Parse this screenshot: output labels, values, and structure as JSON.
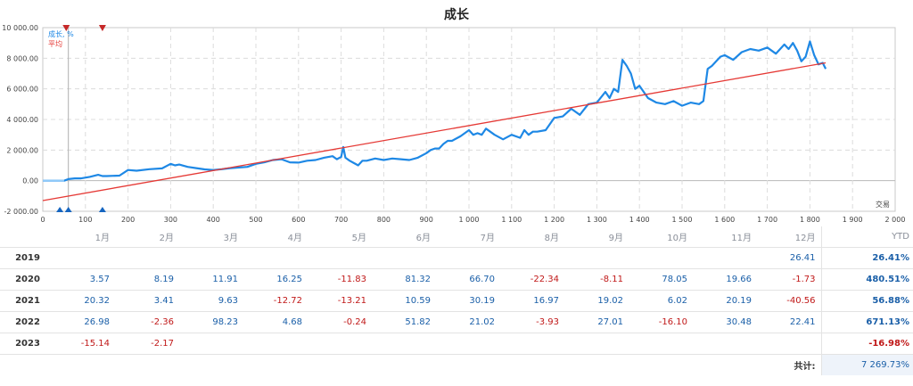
{
  "chart_data": {
    "type": "line",
    "title": "成长",
    "series": [
      {
        "name": "成长, %",
        "color": "#1e88e5",
        "x": [
          0,
          20,
          40,
          50,
          55,
          60,
          75,
          90,
          110,
          130,
          140,
          150,
          180,
          200,
          220,
          250,
          280,
          300,
          310,
          320,
          340,
          360,
          380,
          400,
          420,
          440,
          460,
          480,
          500,
          520,
          540,
          560,
          580,
          600,
          620,
          640,
          660,
          680,
          690,
          700,
          705,
          710,
          720,
          730,
          740,
          750,
          760,
          780,
          800,
          820,
          840,
          860,
          880,
          900,
          910,
          920,
          930,
          940,
          950,
          960,
          980,
          1000,
          1010,
          1020,
          1030,
          1040,
          1060,
          1080,
          1100,
          1120,
          1130,
          1140,
          1150,
          1160,
          1180,
          1200,
          1220,
          1240,
          1260,
          1280,
          1300,
          1320,
          1330,
          1340,
          1350,
          1360,
          1370,
          1380,
          1390,
          1400,
          1420,
          1440,
          1460,
          1480,
          1500,
          1520,
          1540,
          1550,
          1560,
          1570,
          1580,
          1590,
          1600,
          1620,
          1640,
          1660,
          1680,
          1700,
          1720,
          1740,
          1750,
          1760,
          1770,
          1780,
          1790,
          1800,
          1810,
          1820,
          1830,
          1837
        ],
        "y": [
          0,
          0,
          0,
          0,
          50,
          100,
          150,
          150,
          250,
          380,
          300,
          300,
          330,
          700,
          650,
          750,
          800,
          1100,
          1000,
          1050,
          900,
          820,
          740,
          700,
          750,
          820,
          860,
          900,
          1100,
          1200,
          1350,
          1400,
          1200,
          1180,
          1300,
          1350,
          1500,
          1600,
          1400,
          1550,
          2200,
          1500,
          1300,
          1150,
          1000,
          1300,
          1300,
          1450,
          1350,
          1450,
          1400,
          1350,
          1500,
          1800,
          2000,
          2100,
          2100,
          2400,
          2600,
          2600,
          2900,
          3300,
          3000,
          3100,
          3000,
          3400,
          3000,
          2700,
          3000,
          2800,
          3300,
          3000,
          3200,
          3200,
          3300,
          4100,
          4200,
          4700,
          4300,
          5000,
          5100,
          5800,
          5400,
          6000,
          5800,
          7900,
          7500,
          7000,
          6000,
          6200,
          5400,
          5100,
          5000,
          5200,
          4900,
          5100,
          5000,
          5200,
          7300,
          7500,
          7800,
          8100,
          8200,
          7900,
          8400,
          8600,
          8500,
          8700,
          8300,
          8900,
          8600,
          9000,
          8500,
          7800,
          8100,
          9100,
          8200,
          7600,
          7700,
          7300
        ]
      },
      {
        "name": "平均",
        "color": "#e53935",
        "x": [
          0,
          1837
        ],
        "y": [
          -1300,
          7700
        ]
      }
    ],
    "xlim": [
      0,
      2000
    ],
    "ylim": [
      -2000,
      10000
    ],
    "x_ticks": [
      "0",
      "100",
      "200",
      "300",
      "400",
      "500",
      "600",
      "700",
      "800",
      "900",
      "1 000",
      "1 100",
      "1 200",
      "1 300",
      "1 400",
      "1 500",
      "1 600",
      "1 700",
      "1 800",
      "1 900",
      "2 000"
    ],
    "y_ticks": [
      "10 000.00",
      "8 000.00",
      "6 000.00",
      "4 000.00",
      "2 000.00",
      "0.00",
      "-2 000.00"
    ],
    "xlabel": "交易",
    "legend_position": "top-left",
    "grid": true,
    "markers": {
      "top": [
        55,
        140
      ],
      "bottom": [
        40,
        60,
        140
      ]
    },
    "vertical_marker_x": 60
  },
  "table": {
    "months": [
      "1月",
      "2月",
      "3月",
      "4月",
      "5月",
      "6月",
      "7月",
      "8月",
      "9月",
      "10月",
      "11月",
      "12月"
    ],
    "ytd_label": "YTD",
    "rows": [
      {
        "year": "2019",
        "values": [
          "",
          "",
          "",
          "",
          "",
          "",
          "",
          "",
          "",
          "",
          "",
          "26.41"
        ],
        "ytd": "26.41%"
      },
      {
        "year": "2020",
        "values": [
          "3.57",
          "8.19",
          "11.91",
          "16.25",
          "-11.83",
          "81.32",
          "66.70",
          "-22.34",
          "-8.11",
          "78.05",
          "19.66",
          "-1.73"
        ],
        "ytd": "480.51%"
      },
      {
        "year": "2021",
        "values": [
          "20.32",
          "3.41",
          "9.63",
          "-12.72",
          "-13.21",
          "10.59",
          "30.19",
          "16.97",
          "19.02",
          "6.02",
          "20.19",
          "-40.56"
        ],
        "ytd": "56.88%"
      },
      {
        "year": "2022",
        "values": [
          "26.98",
          "-2.36",
          "98.23",
          "4.68",
          "-0.24",
          "51.82",
          "21.02",
          "-3.93",
          "27.01",
          "-16.10",
          "30.48",
          "22.41"
        ],
        "ytd": "671.13%"
      },
      {
        "year": "2023",
        "values": [
          "-15.14",
          "-2.17",
          "",
          "",
          "",
          "",
          "",
          "",
          "",
          "",
          "",
          ""
        ],
        "ytd": "-16.98%"
      }
    ],
    "total_label": "共计:",
    "total_value": "7 269.73%"
  }
}
